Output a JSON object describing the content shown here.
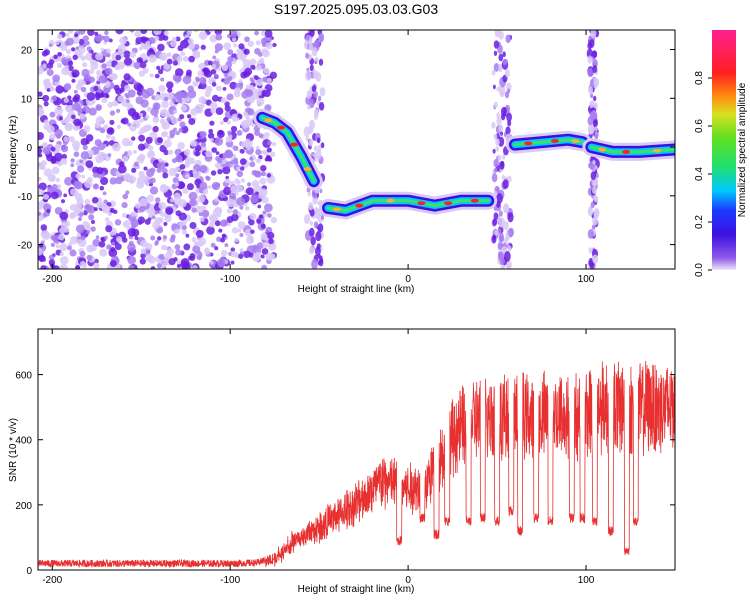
{
  "title": "S197.2025.095.03.03.G03",
  "colors": {
    "snr_line": "#e83030",
    "scatter": "#7a36e6"
  },
  "chart_data": [
    {
      "type": "heatmap",
      "xlabel": "Height of straight line (km)",
      "ylabel": "Frequency (Hz)",
      "xlim": [
        -208,
        150
      ],
      "ylim": [
        -25,
        24
      ],
      "x_ticks": [
        -200,
        -100,
        0,
        100
      ],
      "y_ticks": [
        -20,
        -10,
        0,
        10,
        20
      ],
      "colorbar": {
        "label": "Normalized spectral amplitude",
        "range": [
          0,
          1
        ],
        "ticks": [
          0.0,
          0.2,
          0.4,
          0.6,
          0.8
        ],
        "colormap": "rainbow (violet to magenta)"
      },
      "ridge_segments": [
        {
          "x": [
            -82,
            -75,
            -68,
            -60,
            -53
          ],
          "y": [
            6,
            5,
            3,
            -2,
            -7
          ]
        },
        {
          "x": [
            -45,
            -35,
            -20,
            0,
            15,
            30,
            45
          ],
          "y": [
            -12.5,
            -13,
            -11,
            -11,
            -12,
            -11,
            -11
          ]
        },
        {
          "x": [
            60,
            75,
            90,
            98
          ],
          "y": [
            0.5,
            1,
            1.5,
            1
          ]
        },
        {
          "x": [
            103,
            115,
            130,
            150
          ],
          "y": [
            0,
            -1,
            -1,
            -0.5
          ]
        }
      ],
      "noise_bands": [
        {
          "x_min": -208,
          "x_max": -75,
          "y_min": -25,
          "y_max": 24
        },
        {
          "x_min": -57,
          "x_max": -48,
          "y_min": -25,
          "y_max": 24
        },
        {
          "x_min": 48,
          "x_max": 58,
          "y_min": -25,
          "y_max": 24
        },
        {
          "x_min": 102,
          "x_max": 106,
          "y_min": -25,
          "y_max": 24
        }
      ]
    },
    {
      "type": "line",
      "xlabel": "Height of straight line (km)",
      "ylabel": "SNR (10 * v/v)",
      "xlim": [
        -208,
        150
      ],
      "ylim": [
        0,
        740
      ],
      "x_ticks": [
        -200,
        -100,
        0,
        100
      ],
      "y_ticks": [
        0,
        200,
        400,
        600
      ],
      "series": [
        {
          "envelope_x": [
            -208,
            -170,
            -130,
            -100,
            -85,
            -75,
            -65,
            -55,
            -45,
            -35,
            -25,
            -15,
            -5,
            0,
            10,
            20,
            30,
            40,
            50,
            60,
            70,
            80,
            90,
            100,
            110,
            120,
            130,
            140,
            150
          ],
          "envelope_y": [
            20,
            20,
            20,
            20,
            22,
            40,
            100,
            140,
            180,
            220,
            270,
            330,
            320,
            300,
            320,
            450,
            530,
            560,
            570,
            580,
            560,
            580,
            570,
            580,
            620,
            600,
            600,
            610,
            600
          ],
          "dropout_x": [
            -5,
            8,
            16,
            22,
            34,
            42,
            50,
            58,
            63,
            72,
            80,
            92,
            98,
            105,
            114,
            123,
            128
          ],
          "dropout_y": [
            90,
            160,
            110,
            150,
            150,
            160,
            150,
            180,
            120,
            160,
            150,
            160,
            160,
            150,
            120,
            60,
            150
          ]
        }
      ]
    }
  ]
}
